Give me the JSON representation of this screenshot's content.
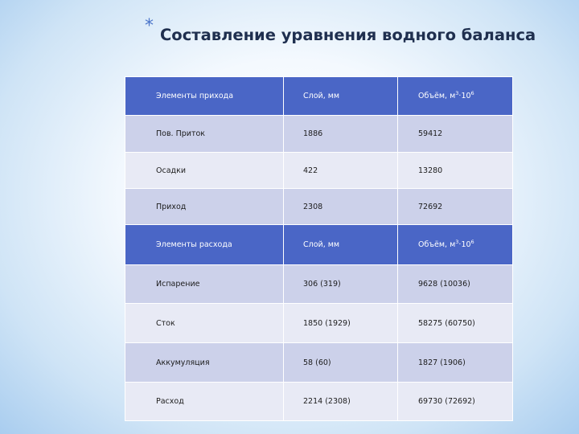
{
  "title": {
    "bullet": "*",
    "text": "Составление уравнения водного баланса"
  },
  "table": {
    "income_header": [
      "Элементы прихода",
      "Слой, мм",
      "Объём, м",
      "·10"
    ],
    "income_rows": [
      [
        "Пов. Приток",
        "1886",
        "59412"
      ],
      [
        "Осадки",
        "422",
        "13280"
      ],
      [
        "Приход",
        "2308",
        "72692"
      ]
    ],
    "expense_header": [
      "Элементы расхода",
      "Слой, мм",
      "Объём, м",
      "·10"
    ],
    "expense_rows": [
      [
        "Испарение",
        "306 (319)",
        "9628 (10036)"
      ],
      [
        "Сток",
        "1850 (1929)",
        "58275 (60750)"
      ],
      [
        "Аккумуляция",
        "58 (60)",
        "1827 (1906)"
      ],
      [
        "Расход",
        "2214 (2308)",
        "69730 (72692)"
      ]
    ],
    "units": {
      "volume_power": "3",
      "scale_power": "6"
    },
    "colors": {
      "header": "#4a66c6",
      "row_dark": "#ccd1ea",
      "row_light": "#e8eaf5"
    }
  }
}
